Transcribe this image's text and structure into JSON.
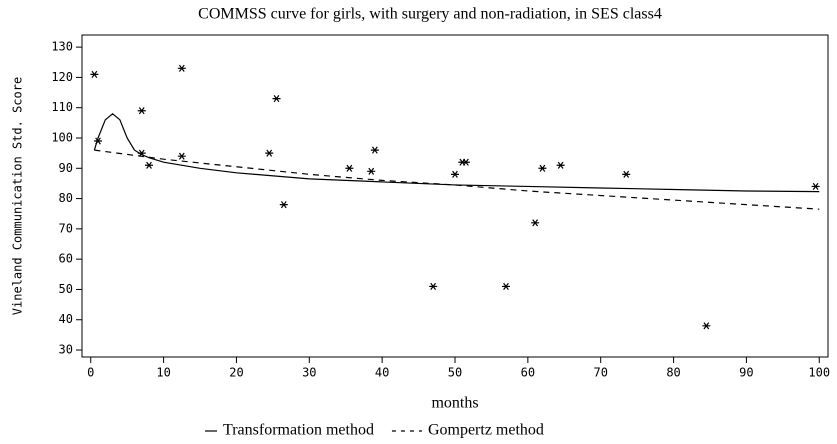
{
  "chart_data": {
    "type": "line",
    "title": "COMMSS curve for girls, with surgery and non-radiation, in SES class4",
    "x_label": "months",
    "y_label": "Vineland Communication Std. Score",
    "xlim": [
      -1.2,
      101.2
    ],
    "ylim": [
      27.7,
      134
    ],
    "xticks": [
      0,
      10,
      20,
      30,
      40,
      50,
      60,
      70,
      80,
      90,
      100
    ],
    "yticks": [
      30,
      40,
      50,
      60,
      70,
      80,
      90,
      100,
      110,
      120,
      130
    ],
    "points": {
      "color": "#000000",
      "x": [
        0.5,
        1,
        7,
        7,
        8,
        12.5,
        12.5,
        24.5,
        25.5,
        26.5,
        35.5,
        38.5,
        39,
        47,
        50,
        51,
        51.5,
        57,
        61,
        62,
        64.5,
        73.5,
        84.5,
        99.5
      ],
      "values": [
        121,
        99,
        109,
        95,
        91,
        123,
        94,
        95,
        113,
        78,
        90,
        89,
        96,
        51,
        88,
        92,
        92,
        51,
        72,
        90,
        91,
        88,
        38,
        84
      ]
    },
    "series": [
      {
        "name": "Transformation method",
        "color": "#000000",
        "dash": "none",
        "x": [
          0.5,
          1,
          2,
          3,
          4,
          5,
          6,
          7,
          8,
          10,
          15,
          20,
          30,
          40,
          50,
          60,
          70,
          80,
          90,
          100
        ],
        "values": [
          96,
          100,
          106,
          108,
          106,
          100,
          96,
          94.5,
          93.5,
          92,
          90,
          88.5,
          86.5,
          85.5,
          84.5,
          84,
          83.5,
          83,
          82.5,
          82.3
        ]
      },
      {
        "name": "Gompertz method",
        "color": "#000000",
        "dash": "6 5",
        "x": [
          0.5,
          10,
          20,
          30,
          40,
          50,
          60,
          70,
          80,
          90,
          100
        ],
        "values": [
          96,
          93,
          90.5,
          88,
          86,
          84.5,
          82.5,
          81,
          79.5,
          78,
          76.5
        ]
      }
    ]
  }
}
